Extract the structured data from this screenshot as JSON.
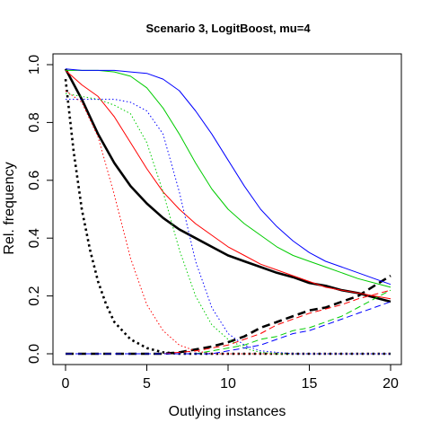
{
  "chart_data": {
    "type": "line",
    "title": "Scenario 3, LogitBoost, mu=4",
    "xlabel": "Outlying instances",
    "ylabel": "Rel. frequency",
    "xlim": [
      0,
      20
    ],
    "ylim": [
      0,
      1
    ],
    "xticks": [
      "0",
      "5",
      "10",
      "15",
      "20"
    ],
    "yticks": [
      "0.0",
      "0.2",
      "0.4",
      "0.6",
      "0.8",
      "1.0"
    ],
    "grid": false,
    "series": [
      {
        "color": "#000000",
        "style": "solid",
        "weight": "thick",
        "x": [
          0,
          1,
          2,
          3,
          4,
          5,
          6,
          7,
          8,
          9,
          10,
          11,
          12,
          13,
          14,
          15,
          16,
          17,
          18,
          19,
          20
        ],
        "y": [
          0.985,
          0.88,
          0.76,
          0.66,
          0.58,
          0.52,
          0.47,
          0.43,
          0.4,
          0.37,
          0.34,
          0.32,
          0.3,
          0.28,
          0.265,
          0.245,
          0.235,
          0.22,
          0.21,
          0.195,
          0.18
        ]
      },
      {
        "color": "#000000",
        "style": "dotted",
        "weight": "thick",
        "x": [
          0,
          0.5,
          1,
          1.5,
          2,
          2.5,
          3,
          4,
          5,
          6,
          7,
          8,
          10,
          15,
          20
        ],
        "y": [
          0.95,
          0.7,
          0.5,
          0.36,
          0.25,
          0.17,
          0.11,
          0.05,
          0.02,
          0.005,
          0.0,
          0.0,
          0.0,
          0.0,
          0.0
        ]
      },
      {
        "color": "#000000",
        "style": "dashed",
        "weight": "thick",
        "x": [
          0,
          5,
          6,
          7,
          8,
          9,
          10,
          11,
          12,
          13,
          14,
          15,
          16,
          17,
          18,
          19,
          20
        ],
        "y": [
          0.0,
          0.0,
          0.0,
          0.005,
          0.015,
          0.025,
          0.04,
          0.06,
          0.09,
          0.11,
          0.13,
          0.15,
          0.16,
          0.18,
          0.2,
          0.235,
          0.27
        ]
      },
      {
        "color": "#ff0000",
        "style": "solid",
        "weight": "thin",
        "x": [
          0,
          1,
          2,
          3,
          4,
          5,
          6,
          7,
          8,
          9,
          10,
          11,
          12,
          13,
          14,
          15,
          16,
          17,
          18,
          19,
          20
        ],
        "y": [
          0.98,
          0.93,
          0.89,
          0.82,
          0.73,
          0.64,
          0.56,
          0.5,
          0.45,
          0.41,
          0.37,
          0.34,
          0.31,
          0.29,
          0.27,
          0.25,
          0.23,
          0.22,
          0.21,
          0.2,
          0.19
        ]
      },
      {
        "color": "#ff0000",
        "style": "dotted",
        "weight": "thin",
        "x": [
          0,
          1,
          2,
          3,
          4,
          5,
          6,
          7,
          8,
          9,
          10,
          12,
          15,
          20
        ],
        "y": [
          0.91,
          0.87,
          0.75,
          0.55,
          0.33,
          0.17,
          0.08,
          0.03,
          0.01,
          0.0,
          0.0,
          0.0,
          0.0,
          0.0
        ]
      },
      {
        "color": "#ff0000",
        "style": "dashed",
        "weight": "thin",
        "x": [
          0,
          6,
          7,
          8,
          9,
          10,
          11,
          12,
          13,
          14,
          15,
          16,
          17,
          18,
          19,
          20
        ],
        "y": [
          0.0,
          0.0,
          0.005,
          0.01,
          0.02,
          0.03,
          0.05,
          0.07,
          0.1,
          0.12,
          0.14,
          0.155,
          0.17,
          0.19,
          0.205,
          0.22
        ]
      },
      {
        "color": "#00cc00",
        "style": "solid",
        "weight": "thin",
        "x": [
          0,
          1,
          2,
          3,
          4,
          5,
          6,
          7,
          8,
          9,
          10,
          11,
          12,
          13,
          14,
          15,
          16,
          17,
          18,
          19,
          20
        ],
        "y": [
          0.98,
          0.98,
          0.98,
          0.975,
          0.96,
          0.92,
          0.85,
          0.76,
          0.66,
          0.57,
          0.5,
          0.45,
          0.41,
          0.37,
          0.34,
          0.32,
          0.3,
          0.28,
          0.26,
          0.245,
          0.23
        ]
      },
      {
        "color": "#00cc00",
        "style": "dotted",
        "weight": "thin",
        "x": [
          0,
          1,
          2,
          3,
          4,
          5,
          6,
          7,
          8,
          9,
          10,
          11,
          12,
          13,
          15,
          20
        ],
        "y": [
          0.9,
          0.89,
          0.88,
          0.86,
          0.83,
          0.73,
          0.56,
          0.36,
          0.2,
          0.1,
          0.05,
          0.02,
          0.005,
          0.0,
          0.0,
          0.0
        ]
      },
      {
        "color": "#00cc00",
        "style": "dashed",
        "weight": "thin",
        "x": [
          0,
          8,
          9,
          10,
          11,
          12,
          13,
          14,
          15,
          16,
          17,
          18,
          19,
          20
        ],
        "y": [
          0.0,
          0.0,
          0.01,
          0.02,
          0.03,
          0.05,
          0.06,
          0.08,
          0.09,
          0.11,
          0.13,
          0.16,
          0.19,
          0.22
        ]
      },
      {
        "color": "#0000ff",
        "style": "solid",
        "weight": "thin",
        "x": [
          0,
          1,
          2,
          3,
          4,
          5,
          6,
          7,
          8,
          9,
          10,
          11,
          12,
          13,
          14,
          15,
          16,
          17,
          18,
          19,
          20
        ],
        "y": [
          0.985,
          0.98,
          0.98,
          0.98,
          0.975,
          0.97,
          0.95,
          0.91,
          0.84,
          0.76,
          0.67,
          0.58,
          0.5,
          0.44,
          0.39,
          0.35,
          0.32,
          0.3,
          0.28,
          0.26,
          0.24
        ]
      },
      {
        "color": "#0000ff",
        "style": "dotted",
        "weight": "thin",
        "x": [
          0,
          1,
          2,
          3,
          4,
          5,
          6,
          7,
          8,
          9,
          10,
          11,
          12,
          13,
          14,
          15,
          20
        ],
        "y": [
          0.88,
          0.88,
          0.88,
          0.88,
          0.87,
          0.84,
          0.76,
          0.56,
          0.32,
          0.16,
          0.07,
          0.03,
          0.01,
          0.005,
          0.0,
          0.0,
          0.0
        ]
      },
      {
        "color": "#0000ff",
        "style": "dashed",
        "weight": "thin",
        "x": [
          0,
          9,
          10,
          11,
          12,
          13,
          14,
          15,
          16,
          17,
          18,
          19,
          20
        ],
        "y": [
          0.0,
          0.0,
          0.01,
          0.02,
          0.03,
          0.05,
          0.07,
          0.08,
          0.1,
          0.12,
          0.14,
          0.16,
          0.18
        ]
      }
    ]
  }
}
